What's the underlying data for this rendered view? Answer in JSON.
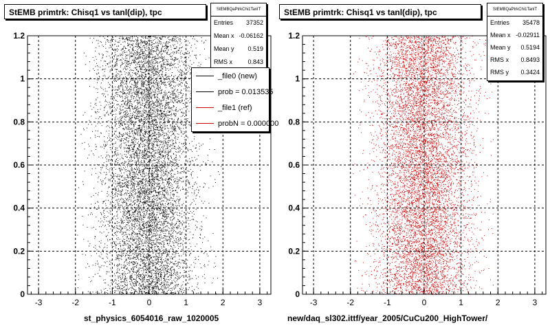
{
  "chart_data": [
    {
      "type": "scatter",
      "title": "StEMB primtrk: Chisq1 vs tanl(dip), tpc",
      "xlabel": "st_physics_6054016_raw_1020005",
      "ylabel": "",
      "xlim": [
        -3.3,
        3.3
      ],
      "ylim": [
        0,
        1.2
      ],
      "x_ticks": [
        "-3",
        "-2",
        "-1",
        "0",
        "1",
        "2",
        "3"
      ],
      "y_ticks": [
        "0",
        "0.2",
        "0.4",
        "0.6",
        "0.8",
        "1",
        "1.2"
      ],
      "grid": true,
      "color": "#000000",
      "stats": {
        "name": "StEMBQaPtrkChi1TanlT",
        "rows": [
          {
            "label": "Entries",
            "value": "37352"
          },
          {
            "label": "Mean x",
            "value": "-0.06162"
          },
          {
            "label": "Mean y",
            "value": "0.519"
          },
          {
            "label": "RMS x",
            "value": "0.843"
          }
        ]
      },
      "legend": [
        {
          "label": "_file0 (new)",
          "color": "#000000"
        },
        {
          "label": "prob = 0.013535",
          "color": "#000000"
        },
        {
          "label": "_file1 (ref)",
          "color": "#cc0000"
        },
        {
          "label": "probN = 0.000000",
          "color": "#cc0000"
        }
      ],
      "distribution": {
        "entries": 37352,
        "mean_x": -0.06162,
        "mean_y": 0.519,
        "rms_x": 0.843
      }
    },
    {
      "type": "scatter",
      "title": "StEMB primtrk: Chisq1 vs tanl(dip), tpc",
      "xlabel": "new/daq_sl302.ittf/year_2005/CuCu200_HighTower/",
      "ylabel": "",
      "xlim": [
        -3.3,
        3.3
      ],
      "ylim": [
        0,
        1.2
      ],
      "x_ticks": [
        "-3",
        "-2",
        "-1",
        "0",
        "1",
        "2",
        "3"
      ],
      "y_ticks": [
        "0",
        "0.2",
        "0.4",
        "0.6",
        "0.8",
        "1",
        "1.2"
      ],
      "grid": true,
      "color": "#cc0000",
      "stats": {
        "name": "StEMBQaPtrkChi1TanlT",
        "rows": [
          {
            "label": "Entries",
            "value": "35478"
          },
          {
            "label": "Mean x",
            "value": "-0.02911"
          },
          {
            "label": "Mean y",
            "value": "0.5194"
          },
          {
            "label": "RMS x",
            "value": "0.8493"
          },
          {
            "label": "RMS y",
            "value": "0.3424"
          }
        ]
      },
      "distribution": {
        "entries": 35478,
        "mean_x": -0.02911,
        "mean_y": 0.5194,
        "rms_x": 0.8493,
        "rms_y": 0.3424
      }
    }
  ]
}
